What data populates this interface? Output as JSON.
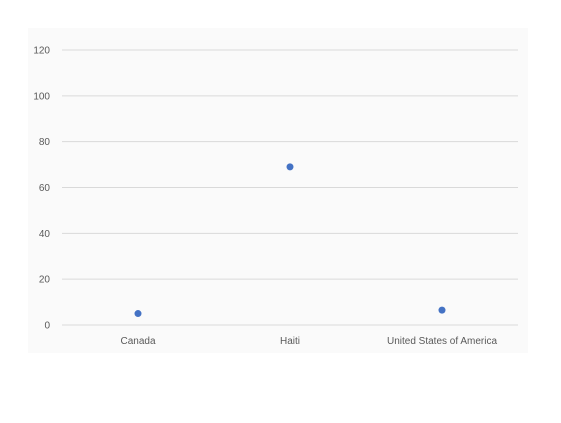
{
  "chart_data": {
    "type": "scatter",
    "categories": [
      "Canada",
      "Haiti",
      "United States of America"
    ],
    "series": [
      {
        "values": [
          5,
          69,
          6.5
        ]
      }
    ],
    "ylim": [
      0,
      120
    ],
    "yticks": [
      0,
      20,
      40,
      60,
      80,
      100,
      120
    ],
    "grid": true,
    "colors": {
      "marker": "#4472c4",
      "grid": "#d9d9d9",
      "plot_bg": "#fafafa",
      "text": "#595959"
    }
  }
}
